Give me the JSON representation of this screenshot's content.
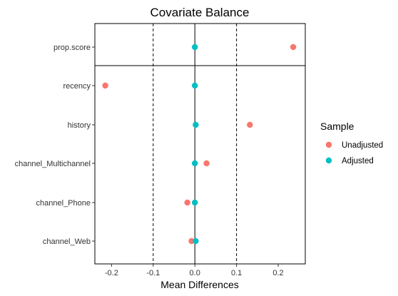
{
  "chart_data": {
    "type": "scatter",
    "title": "Covariate Balance",
    "xlabel": "Mean Differences",
    "ylabel": "",
    "xlim": [
      -0.24,
      0.265
    ],
    "x_ticks": [
      "-0.2",
      "-0.1",
      "0.0",
      "0.1",
      "0.2"
    ],
    "x_tick_values": [
      -0.2,
      -0.1,
      0.0,
      0.1,
      0.2
    ],
    "reference_lines": {
      "solid": [
        0
      ],
      "dashed": [
        -0.1,
        0.1
      ]
    },
    "categories": [
      "prop.score",
      "recency",
      "history",
      "channel_Multichannel",
      "channel_Phone",
      "channel_Web"
    ],
    "separator_after": "prop.score",
    "grid": false,
    "legend": {
      "title": "Sample",
      "placement": "right"
    },
    "series": [
      {
        "name": "Unadjusted",
        "color": "#F8766D",
        "values": [
          0.236,
          -0.215,
          0.132,
          0.028,
          -0.018,
          -0.008
        ]
      },
      {
        "name": "Adjusted",
        "color": "#00BFC4",
        "values": [
          0.0,
          0.0,
          0.002,
          0.0,
          0.0,
          0.002
        ]
      }
    ]
  }
}
